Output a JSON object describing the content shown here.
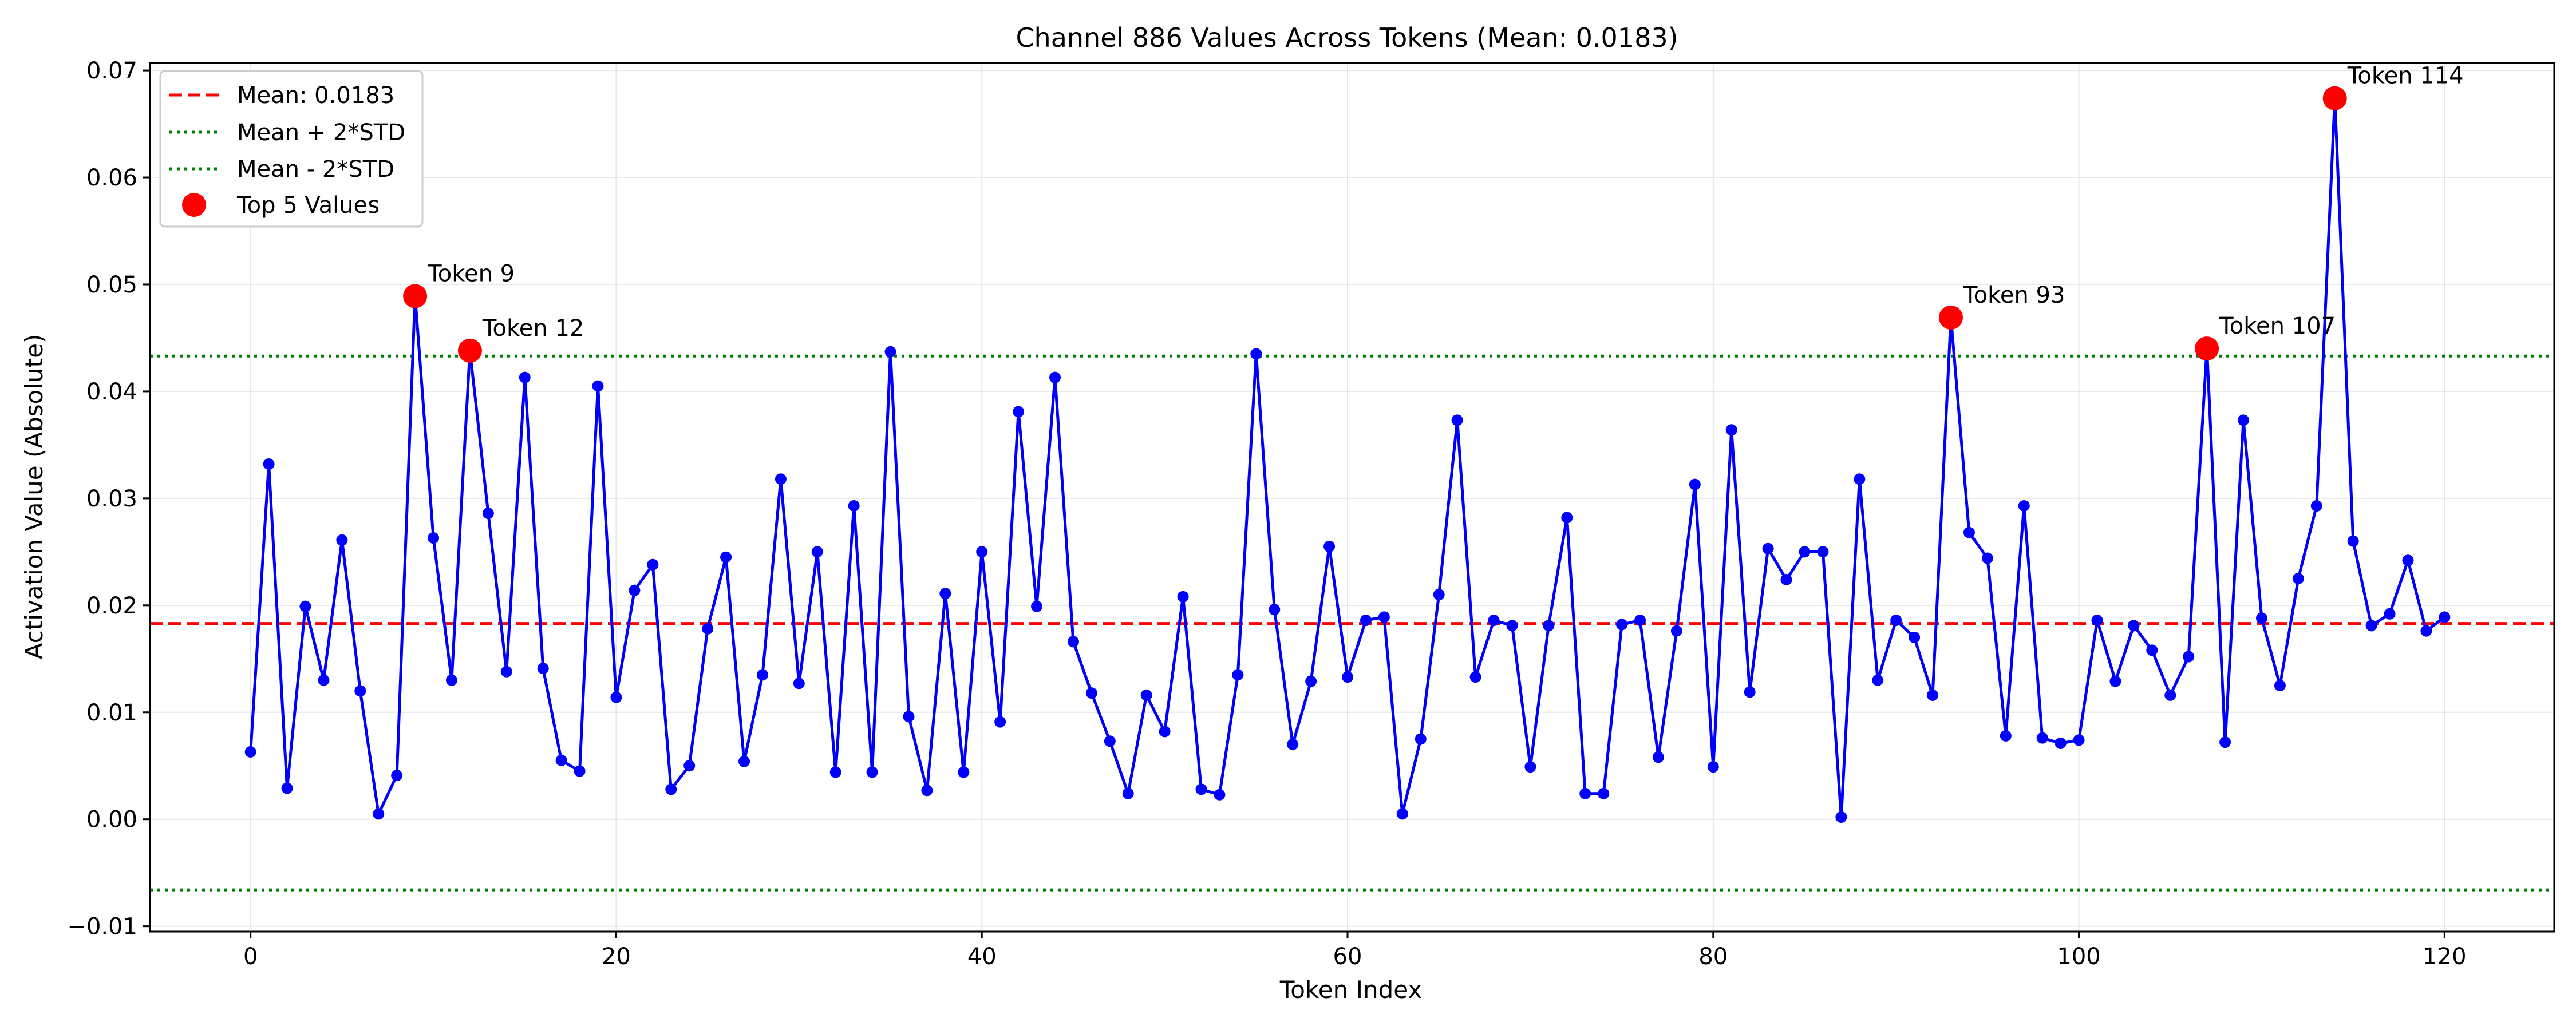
{
  "chart_data": {
    "type": "line",
    "title": "Channel 886 Values Across Tokens (Mean: 0.0183)",
    "xlabel": "Token Index",
    "ylabel": "Activation Value (Absolute)",
    "xlim": [
      -5.5,
      126
    ],
    "ylim": [
      -0.0105,
      0.0707
    ],
    "xticks": [
      0,
      20,
      40,
      60,
      80,
      100,
      120
    ],
    "yticks": [
      -0.01,
      0.0,
      0.01,
      0.02,
      0.03,
      0.04,
      0.05,
      0.06,
      0.07
    ],
    "ytick_labels": [
      "−0.01",
      "0.00",
      "0.01",
      "0.02",
      "0.03",
      "0.04",
      "0.05",
      "0.06",
      "0.07"
    ],
    "grid": true,
    "legend_position": "top-left",
    "line_color": "#0000ff",
    "mean": 0.0183,
    "upper": 0.0433,
    "lower": -0.0066,
    "legend": [
      {
        "label": "Mean: 0.0183",
        "style": "dashed",
        "color": "#ff0000"
      },
      {
        "label": "Mean + 2*STD",
        "style": "dotted",
        "color": "#008000"
      },
      {
        "label": "Mean - 2*STD",
        "style": "dotted",
        "color": "#008000"
      },
      {
        "label": "Top 5 Values",
        "style": "marker",
        "color": "#ff0000"
      }
    ],
    "values": [
      0.0063,
      0.0332,
      0.0029,
      0.0199,
      0.013,
      0.0261,
      0.012,
      0.0005,
      0.0041,
      0.0489,
      0.0263,
      0.013,
      0.0438,
      0.0286,
      0.0138,
      0.0413,
      0.0141,
      0.0055,
      0.0045,
      0.0405,
      0.0114,
      0.0214,
      0.0238,
      0.0028,
      0.005,
      0.0178,
      0.0245,
      0.0054,
      0.0135,
      0.0318,
      0.0127,
      0.025,
      0.0044,
      0.0293,
      0.0044,
      0.0437,
      0.0096,
      0.0027,
      0.0211,
      0.0044,
      0.025,
      0.0091,
      0.0381,
      0.0199,
      0.0413,
      0.0166,
      0.0118,
      0.0073,
      0.0024,
      0.0116,
      0.0082,
      0.0208,
      0.0028,
      0.0023,
      0.0135,
      0.0435,
      0.0196,
      0.007,
      0.0129,
      0.0255,
      0.0133,
      0.0186,
      0.0189,
      0.0005,
      0.0075,
      0.021,
      0.0373,
      0.0133,
      0.0186,
      0.0181,
      0.0049,
      0.0181,
      0.0282,
      0.0024,
      0.0024,
      0.0182,
      0.0186,
      0.0058,
      0.0176,
      0.0313,
      0.0049,
      0.0364,
      0.0119,
      0.0253,
      0.0224,
      0.025,
      0.025,
      0.0002,
      0.0318,
      0.013,
      0.0186,
      0.017,
      0.0116,
      0.0469,
      0.0268,
      0.0244,
      0.0078,
      0.0293,
      0.0076,
      0.0071,
      0.0074,
      0.0186,
      0.0129,
      0.0181,
      0.0158,
      0.0116,
      0.0152,
      0.044,
      0.0072,
      0.0373,
      0.0188,
      0.0125,
      0.0225,
      0.0293,
      0.0674,
      0.026,
      0.0181,
      0.0192,
      0.0242,
      0.0176,
      0.0189
    ],
    "top5": [
      {
        "token": 9,
        "value": 0.0489,
        "label": "Token 9"
      },
      {
        "token": 12,
        "value": 0.0438,
        "label": "Token 12"
      },
      {
        "token": 93,
        "value": 0.0469,
        "label": "Token 93"
      },
      {
        "token": 107,
        "value": 0.044,
        "label": "Token 107"
      },
      {
        "token": 114,
        "value": 0.0674,
        "label": "Token 114"
      }
    ]
  }
}
